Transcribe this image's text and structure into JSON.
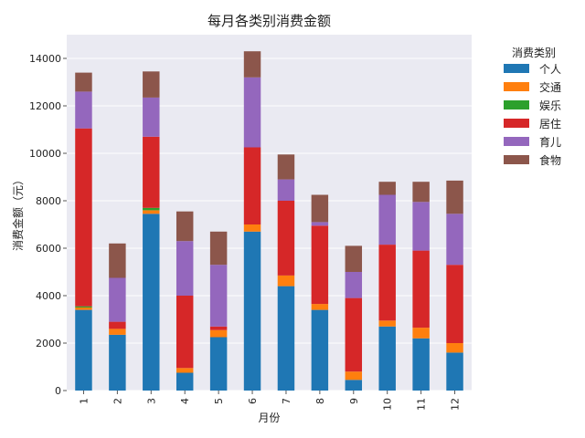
{
  "chart_data": {
    "type": "bar",
    "stacked": true,
    "title": "每月各类别消费金额",
    "xlabel": "月份",
    "ylabel": "消费金额（元）",
    "ylim": [
      0,
      15000
    ],
    "yticks": [
      0,
      2000,
      4000,
      6000,
      8000,
      10000,
      12000,
      14000
    ],
    "grid": true,
    "background": "#eaeaf2",
    "legend": {
      "title": "消费类别",
      "placement": "outside-right"
    },
    "categories": [
      "1",
      "2",
      "3",
      "4",
      "5",
      "6",
      "7",
      "8",
      "9",
      "10",
      "11",
      "12"
    ],
    "series": [
      {
        "name": "个人",
        "color": "#1f77b4",
        "values": [
          3400,
          2350,
          7450,
          750,
          2250,
          6700,
          4400,
          3400,
          450,
          2700,
          2200,
          1600
        ]
      },
      {
        "name": "交通",
        "color": "#ff7f0e",
        "values": [
          100,
          250,
          150,
          200,
          300,
          300,
          450,
          250,
          350,
          250,
          450,
          400
        ]
      },
      {
        "name": "娱乐",
        "color": "#2ca02c",
        "values": [
          50,
          0,
          100,
          0,
          0,
          0,
          0,
          0,
          0,
          0,
          0,
          0
        ]
      },
      {
        "name": "居住",
        "color": "#d62728",
        "values": [
          7500,
          300,
          3000,
          3050,
          150,
          3250,
          3150,
          3300,
          3100,
          3200,
          3250,
          3300
        ]
      },
      {
        "name": "育儿",
        "color": "#9467bd",
        "values": [
          1550,
          1850,
          1650,
          2300,
          2600,
          2950,
          900,
          150,
          1100,
          2100,
          2050,
          2150
        ]
      },
      {
        "name": "食物",
        "color": "#8c564b",
        "values": [
          800,
          1450,
          1100,
          1250,
          1400,
          1100,
          1050,
          1150,
          1100,
          550,
          850,
          1400
        ]
      }
    ]
  }
}
